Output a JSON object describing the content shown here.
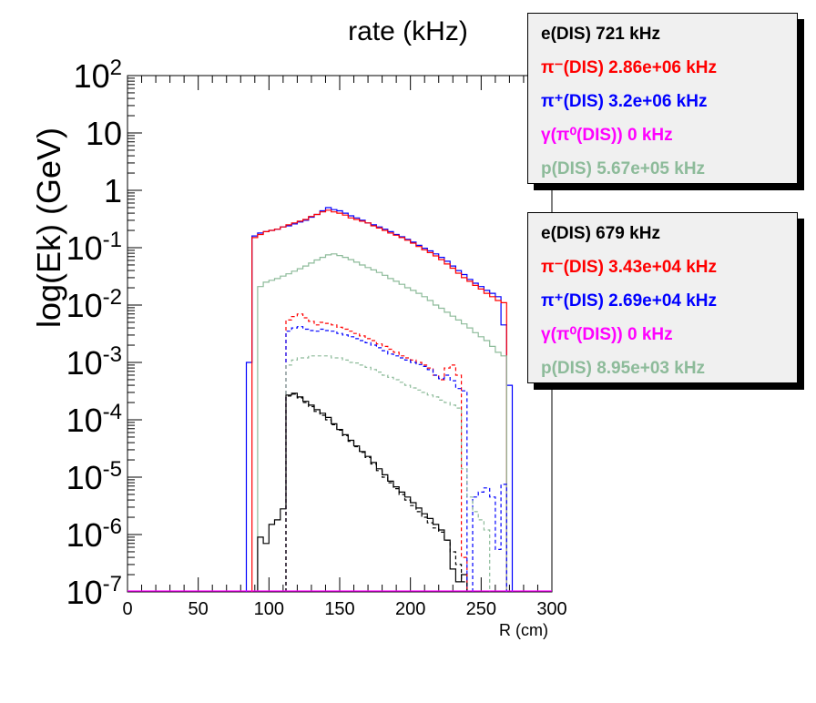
{
  "chart_data": {
    "type": "line",
    "title": "rate (kHz)",
    "xlabel": "R (cm)",
    "ylabel": "log(Ek)  (GeV)",
    "xlim": [
      0,
      300
    ],
    "ylim": [
      1e-07,
      100
    ],
    "yscale": "log",
    "x_ticks": [
      "0",
      "50",
      "100",
      "150",
      "200",
      "250",
      "300"
    ],
    "y_ticks": [
      {
        "base": "10",
        "exp": "2"
      },
      {
        "base": "10",
        "exp": ""
      },
      {
        "base": "1",
        "exp": ""
      },
      {
        "base": "10",
        "exp": "-1"
      },
      {
        "base": "10",
        "exp": "-2"
      },
      {
        "base": "10",
        "exp": "-3"
      },
      {
        "base": "10",
        "exp": "-4"
      },
      {
        "base": "10",
        "exp": "-5"
      },
      {
        "base": "10",
        "exp": "-6"
      },
      {
        "base": "10",
        "exp": "-7"
      }
    ],
    "grid": false,
    "series": [
      {
        "color": "#0000ff",
        "style": "solid",
        "x": [
          84,
          88,
          92,
          96,
          100,
          104,
          108,
          112,
          116,
          120,
          124,
          128,
          132,
          136,
          140,
          144,
          148,
          152,
          156,
          160,
          164,
          168,
          172,
          176,
          180,
          184,
          188,
          192,
          196,
          200,
          204,
          208,
          212,
          216,
          220,
          224,
          228,
          232,
          236,
          240,
          244,
          248,
          252,
          256,
          260,
          264,
          268,
          272,
          276
        ],
        "y": [
          0.001,
          0.16,
          0.18,
          0.19,
          0.2,
          0.21,
          0.23,
          0.24,
          0.26,
          0.28,
          0.3,
          0.34,
          0.38,
          0.44,
          0.5,
          0.46,
          0.44,
          0.4,
          0.36,
          0.33,
          0.3,
          0.27,
          0.25,
          0.23,
          0.21,
          0.19,
          0.17,
          0.155,
          0.14,
          0.125,
          0.11,
          0.098,
          0.088,
          0.078,
          0.068,
          0.058,
          0.048,
          0.04,
          0.034,
          0.028,
          0.024,
          0.021,
          0.018,
          0.016,
          0.014,
          0.0045,
          0.0004,
          null,
          null
        ]
      },
      {
        "color": "#ff0000",
        "style": "solid",
        "x": [
          88,
          92,
          96,
          100,
          104,
          108,
          112,
          116,
          120,
          124,
          128,
          132,
          136,
          140,
          144,
          148,
          152,
          156,
          160,
          164,
          168,
          172,
          176,
          180,
          184,
          188,
          192,
          196,
          200,
          204,
          208,
          212,
          216,
          220,
          224,
          228,
          232,
          236,
          240,
          244,
          248,
          252,
          256,
          260,
          264
        ],
        "y": [
          0.15,
          0.17,
          0.19,
          0.2,
          0.21,
          0.23,
          0.25,
          0.27,
          0.29,
          0.31,
          0.35,
          0.38,
          0.42,
          0.45,
          0.42,
          0.4,
          0.37,
          0.33,
          0.31,
          0.29,
          0.27,
          0.24,
          0.22,
          0.2,
          0.18,
          0.165,
          0.15,
          0.135,
          0.12,
          0.105,
          0.092,
          0.082,
          0.072,
          0.062,
          0.052,
          0.044,
          0.036,
          0.03,
          0.026,
          0.022,
          0.019,
          0.016,
          0.014,
          0.012,
          0.011
        ]
      },
      {
        "color": "#8dbb9a",
        "style": "solid",
        "x": [
          92,
          96,
          100,
          104,
          108,
          112,
          116,
          120,
          124,
          128,
          132,
          136,
          140,
          144,
          148,
          152,
          156,
          160,
          164,
          168,
          172,
          176,
          180,
          184,
          188,
          192,
          196,
          200,
          204,
          208,
          212,
          216,
          220,
          224,
          228,
          232,
          236,
          240,
          244,
          248,
          252,
          256,
          260,
          264
        ],
        "y": [
          0.021,
          0.025,
          0.027,
          0.029,
          0.032,
          0.035,
          0.039,
          0.043,
          0.048,
          0.054,
          0.061,
          0.068,
          0.075,
          0.078,
          0.073,
          0.068,
          0.062,
          0.056,
          0.05,
          0.045,
          0.041,
          0.037,
          0.033,
          0.029,
          0.026,
          0.023,
          0.02,
          0.018,
          0.016,
          0.014,
          0.012,
          0.01,
          0.0088,
          0.0075,
          0.0064,
          0.0055,
          0.0047,
          0.004,
          0.0033,
          0.0028,
          0.0024,
          0.0019,
          0.0015,
          0.0013
        ]
      },
      {
        "color": "#000000",
        "style": "solid",
        "x": [
          92,
          96,
          100,
          104,
          108,
          112,
          116,
          120,
          124,
          128,
          132,
          136,
          140,
          144,
          148,
          152,
          156,
          160,
          164,
          168,
          172,
          176,
          180,
          184,
          188,
          192,
          196,
          200,
          204,
          208,
          212,
          216,
          220,
          224,
          228,
          232,
          236,
          240
        ],
        "y": [
          9e-07,
          7e-07,
          1.5e-06,
          1.8e-06,
          2.8e-06,
          0.00027,
          0.00029,
          0.00025,
          0.00021,
          0.00018,
          0.00015,
          0.00013,
          0.00011,
          8.5e-05,
          6.8e-05,
          5.5e-05,
          4.4e-05,
          3.5e-05,
          2.8e-05,
          2.3e-05,
          1.8e-05,
          1.4e-05,
          1.1e-05,
          8.5e-06,
          6.8e-06,
          5.5e-06,
          4.5e-06,
          3.6e-06,
          2.9e-06,
          2.3e-06,
          1.9e-06,
          1.5e-06,
          1.2e-06,
          8e-07,
          2.5e-07,
          1.5e-07,
          2e-07,
          null
        ]
      },
      {
        "color": "#ff0000",
        "style": "dashed",
        "x": [
          112,
          116,
          120,
          124,
          128,
          132,
          136,
          140,
          144,
          148,
          152,
          156,
          160,
          164,
          168,
          172,
          176,
          180,
          184,
          188,
          192,
          196,
          200,
          204,
          208,
          212,
          216,
          220,
          224,
          228,
          232,
          236
        ],
        "y": [
          0.0055,
          0.0063,
          0.007,
          0.006,
          0.0052,
          0.0045,
          0.005,
          0.0048,
          0.0045,
          0.0041,
          0.0038,
          0.0035,
          0.0032,
          0.0029,
          0.0026,
          0.0024,
          0.0021,
          0.0019,
          0.0017,
          0.0015,
          0.0013,
          0.0012,
          0.0011,
          0.001,
          0.0009,
          0.0008,
          0.0006,
          0.0005,
          0.0008,
          0.0009,
          0.0006,
          4e-07
        ]
      },
      {
        "color": "#0000ff",
        "style": "dashed",
        "x": [
          112,
          116,
          120,
          124,
          128,
          132,
          136,
          140,
          144,
          148,
          152,
          156,
          160,
          164,
          168,
          172,
          176,
          180,
          184,
          188,
          192,
          196,
          200,
          204,
          208,
          212,
          216,
          220,
          224,
          228,
          232,
          236,
          240,
          244,
          248,
          252,
          256,
          260,
          264,
          268
        ],
        "y": [
          0.0035,
          0.004,
          0.0042,
          0.0038,
          0.0036,
          0.0035,
          0.0038,
          0.0036,
          0.0035,
          0.0032,
          0.003,
          0.0028,
          0.0026,
          0.0024,
          0.0022,
          0.002,
          0.0018,
          0.0016,
          0.0014,
          0.0013,
          0.0012,
          0.0011,
          0.001,
          0.00092,
          0.00085,
          0.00075,
          0.0006,
          0.00052,
          0.0006,
          0.00048,
          0.00035,
          0.00032,
          null,
          4.5e-06,
          5.5e-06,
          6.5e-06,
          4.5e-06,
          5.5e-07,
          7.5e-06,
          null
        ]
      },
      {
        "color": "#8dbb9a",
        "style": "dashed",
        "x": [
          112,
          116,
          120,
          124,
          128,
          132,
          136,
          140,
          144,
          148,
          152,
          156,
          160,
          164,
          168,
          172,
          176,
          180,
          184,
          188,
          192,
          196,
          200,
          204,
          208,
          212,
          216,
          220,
          224,
          228,
          232,
          236,
          240,
          244,
          248,
          252,
          256
        ],
        "y": [
          0.0009,
          0.0011,
          0.0012,
          0.0012,
          0.0013,
          0.0013,
          0.0013,
          0.0013,
          0.0012,
          0.0012,
          0.0011,
          0.001,
          0.00098,
          0.0009,
          0.00082,
          0.00075,
          0.00068,
          0.0006,
          0.00055,
          0.0005,
          0.00045,
          0.0004,
          0.00036,
          0.00033,
          0.0003,
          0.00027,
          0.00025,
          0.00022,
          0.0002,
          0.00018,
          0.00016,
          1.4e-05,
          4.5e-06,
          2.5e-06,
          1.8e-06,
          1.2e-06,
          null
        ]
      },
      {
        "color": "#000000",
        "style": "dashed",
        "x": [
          112,
          116,
          120,
          124,
          128,
          132,
          136,
          140,
          144,
          148,
          152,
          156,
          160,
          164,
          168,
          172,
          176,
          180,
          184,
          188,
          192,
          196,
          200,
          204,
          208,
          212,
          216,
          220,
          224,
          228,
          232,
          236,
          240
        ],
        "y": [
          0.00026,
          0.00028,
          0.00024,
          0.0002,
          0.00017,
          0.00014,
          0.00012,
          0.0001,
          8.2e-05,
          6.6e-05,
          5.3e-05,
          4.2e-05,
          3.4e-05,
          2.7e-05,
          2.2e-05,
          1.7e-05,
          1.3e-05,
          1e-05,
          8e-06,
          6.3e-06,
          5e-06,
          4e-06,
          3.2e-06,
          2.5e-06,
          2e-06,
          1.6e-06,
          1.3e-06,
          1.1e-06,
          8e-07,
          5e-07,
          3e-07,
          1.5e-07,
          null
        ]
      },
      {
        "color": "#ff00ff",
        "style": "solid",
        "x": [
          0,
          300
        ],
        "y": [
          1e-07,
          1e-07
        ]
      }
    ],
    "legends": [
      [
        {
          "label": "e(DIS)  721 kHz",
          "color": "#000000"
        },
        {
          "label": "π⁻(DIS)  2.86e+06 kHz",
          "color": "#ff0000"
        },
        {
          "label": "π⁺(DIS)  3.2e+06 kHz",
          "color": "#0000ff"
        },
        {
          "label": "γ(π⁰(DIS))  0 kHz",
          "color": "#ff00ff"
        },
        {
          "label": "p(DIS)  5.67e+05 kHz",
          "color": "#8dbb9a"
        }
      ],
      [
        {
          "label": "e(DIS)  679 kHz",
          "color": "#000000"
        },
        {
          "label": "π⁻(DIS)  3.43e+04 kHz",
          "color": "#ff0000"
        },
        {
          "label": "π⁺(DIS)  2.69e+04 kHz",
          "color": "#0000ff"
        },
        {
          "label": "γ(π⁰(DIS))  0 kHz",
          "color": "#ff00ff"
        },
        {
          "label": "p(DIS)  8.95e+03 kHz",
          "color": "#8dbb9a"
        }
      ]
    ]
  }
}
